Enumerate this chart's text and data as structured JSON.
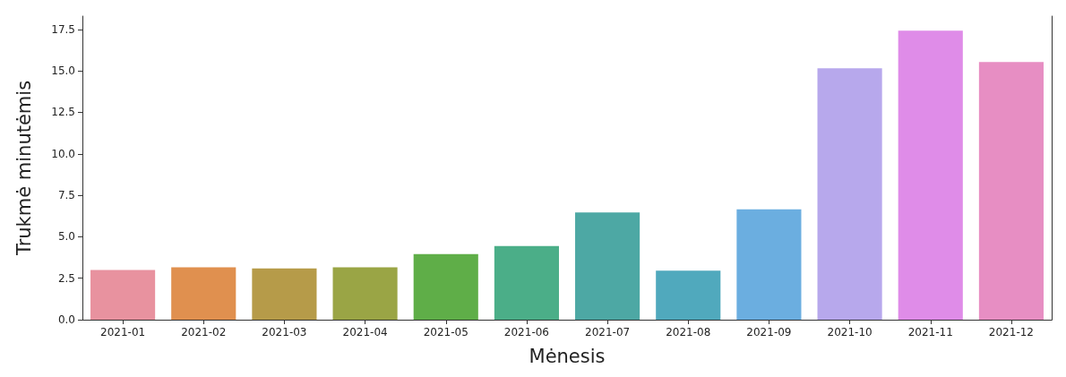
{
  "chart_data": {
    "type": "bar",
    "xlabel": "Mėnesis",
    "ylabel": "Trukmė minutėmis",
    "categories": [
      "2021-01",
      "2021-02",
      "2021-03",
      "2021-04",
      "2021-05",
      "2021-06",
      "2021-07",
      "2021-08",
      "2021-09",
      "2021-10",
      "2021-11",
      "2021-12"
    ],
    "values": [
      3.0,
      3.16,
      3.09,
      3.16,
      3.96,
      4.44,
      6.46,
      2.95,
      6.66,
      15.15,
      17.42,
      15.53
    ],
    "colors": [
      "#e8929f",
      "#e0904f",
      "#b69b49",
      "#9aa545",
      "#5fae48",
      "#4bae88",
      "#4da8a4",
      "#50a9bd",
      "#6baee0",
      "#b7a8ec",
      "#df8ce8",
      "#e78ec3"
    ],
    "ylim": [
      0,
      18.3
    ],
    "yticks": [
      {
        "value": 0,
        "label": "0.0"
      },
      {
        "value": 2.5,
        "label": "2.5"
      },
      {
        "value": 5,
        "label": "5.0"
      },
      {
        "value": 7.5,
        "label": "7.5"
      },
      {
        "value": 10,
        "label": "10.0"
      },
      {
        "value": 12.5,
        "label": "12.5"
      },
      {
        "value": 15,
        "label": "15.0"
      },
      {
        "value": 17.5,
        "label": "17.5"
      }
    ],
    "grid": false
  }
}
